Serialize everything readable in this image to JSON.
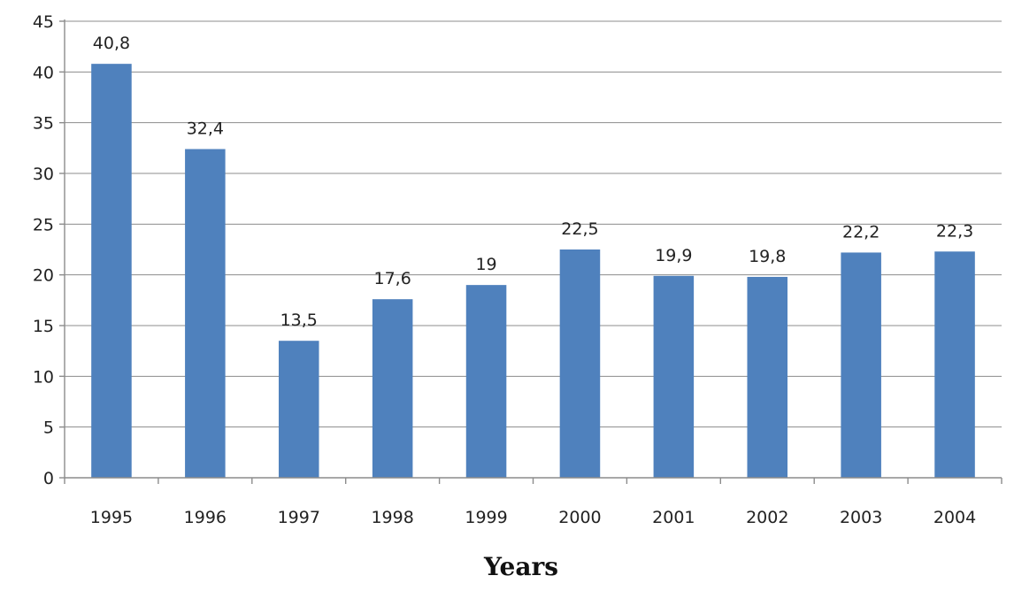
{
  "chart_data": {
    "type": "bar",
    "categories": [
      "1995",
      "1996",
      "1997",
      "1998",
      "1999",
      "2000",
      "2001",
      "2002",
      "2003",
      "2004"
    ],
    "values": [
      40.8,
      32.4,
      13.5,
      17.6,
      19,
      22.5,
      19.9,
      19.8,
      22.2,
      22.3
    ],
    "data_labels": [
      "40,8",
      "32,4",
      "13,5",
      "17,6",
      "19",
      "22,5",
      "19,9",
      "19,8",
      "22,2",
      "22,3"
    ],
    "title": "",
    "xlabel": "Years",
    "ylabel": "",
    "ylim": [
      0,
      45
    ],
    "yticks": [
      "0",
      "5",
      "10",
      "15",
      "20",
      "25",
      "30",
      "35",
      "40",
      "45"
    ],
    "grid": true,
    "colors": {
      "bar": "#4f81bd"
    }
  }
}
